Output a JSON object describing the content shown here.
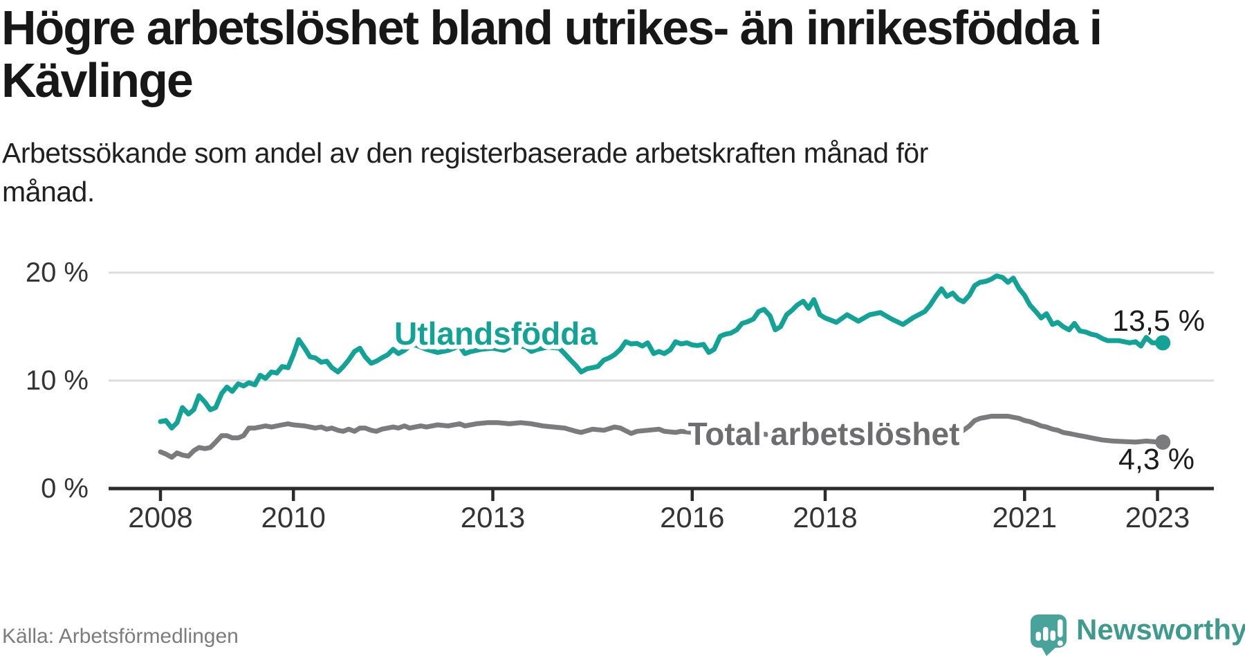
{
  "header": {
    "title_line1": "Högre arbetslöshet bland utrikes- än inrikesfödda i",
    "title_line2": "Kävlinge",
    "subtitle_line1": "Arbetssökande som andel av den registerbaserade arbetskraften månad för",
    "subtitle_line2": "månad."
  },
  "footer": {
    "source": "Källa: Arbetsförmedlingen",
    "brand": "Newsworthy"
  },
  "colors": {
    "teal_line": "#12a296",
    "gray_line": "#7b7b7e",
    "gray_label": "#6d6d70",
    "axis": "#2b2b2b",
    "grid": "#dcdcdc",
    "brand_icon": "#48a39a",
    "brand_text": "#3f9a8e"
  },
  "chart_data": {
    "type": "line",
    "unit": "%",
    "title": "Högre arbetslöshet bland utrikes- än inrikesfödda i Kävlinge",
    "xlabel": "",
    "ylabel": "Arbetssökande som andel av den registerbaserade arbetskraften",
    "x_range": [
      2008,
      2023.17
    ],
    "ylim": [
      0,
      21
    ],
    "grid": "horizontal",
    "legend_position": "inline-labels",
    "y_ticks": [
      {
        "value": 0,
        "label": "0 %"
      },
      {
        "value": 10,
        "label": "10 %"
      },
      {
        "value": 20,
        "label": "20 %"
      }
    ],
    "y_gridlines": [
      10,
      20
    ],
    "x_ticks": [
      {
        "year": 2008,
        "label": "2008"
      },
      {
        "year": 2010,
        "label": "2010"
      },
      {
        "year": 2013,
        "label": "2013"
      },
      {
        "year": 2016,
        "label": "2016"
      },
      {
        "year": 2018,
        "label": "2018"
      },
      {
        "year": 2021,
        "label": "2021"
      },
      {
        "year": 2023,
        "label": "2023"
      }
    ],
    "series": [
      {
        "name": "Utlandsfödda",
        "color": "#12a296",
        "end_label": "13,5 %",
        "end_value": 13.5,
        "points": [
          [
            2008.0,
            6.2
          ],
          [
            2008.08,
            6.3
          ],
          [
            2008.17,
            5.6
          ],
          [
            2008.25,
            6.1
          ],
          [
            2008.33,
            7.5
          ],
          [
            2008.42,
            6.9
          ],
          [
            2008.5,
            7.3
          ],
          [
            2008.58,
            8.6
          ],
          [
            2008.67,
            8.0
          ],
          [
            2008.75,
            7.3
          ],
          [
            2008.83,
            7.5
          ],
          [
            2008.92,
            8.8
          ],
          [
            2009.0,
            9.4
          ],
          [
            2009.08,
            9.0
          ],
          [
            2009.17,
            9.7
          ],
          [
            2009.25,
            9.5
          ],
          [
            2009.33,
            9.8
          ],
          [
            2009.42,
            9.6
          ],
          [
            2009.5,
            10.5
          ],
          [
            2009.58,
            10.2
          ],
          [
            2009.67,
            10.8
          ],
          [
            2009.75,
            10.7
          ],
          [
            2009.83,
            11.3
          ],
          [
            2009.92,
            11.2
          ],
          [
            2010.0,
            12.4
          ],
          [
            2010.08,
            13.8
          ],
          [
            2010.17,
            13.0
          ],
          [
            2010.25,
            12.2
          ],
          [
            2010.33,
            12.1
          ],
          [
            2010.42,
            11.7
          ],
          [
            2010.5,
            11.8
          ],
          [
            2010.58,
            11.2
          ],
          [
            2010.67,
            10.8
          ],
          [
            2010.75,
            11.3
          ],
          [
            2010.83,
            11.9
          ],
          [
            2010.92,
            12.7
          ],
          [
            2011.0,
            13.0
          ],
          [
            2011.08,
            12.2
          ],
          [
            2011.17,
            11.6
          ],
          [
            2011.25,
            11.8
          ],
          [
            2011.33,
            12.1
          ],
          [
            2011.42,
            12.4
          ],
          [
            2011.5,
            12.9
          ],
          [
            2011.58,
            12.5
          ],
          [
            2011.67,
            12.8
          ],
          [
            2011.75,
            13.2
          ],
          [
            2011.83,
            13.3
          ],
          [
            2011.92,
            13.1
          ],
          [
            2012.0,
            12.9
          ],
          [
            2012.17,
            12.6
          ],
          [
            2012.33,
            12.8
          ],
          [
            2012.5,
            13.2
          ],
          [
            2012.58,
            12.5
          ],
          [
            2012.67,
            12.7
          ],
          [
            2012.83,
            12.9
          ],
          [
            2013.0,
            13.0
          ],
          [
            2013.17,
            12.8
          ],
          [
            2013.33,
            13.3
          ],
          [
            2013.5,
            13.1
          ],
          [
            2013.58,
            12.7
          ],
          [
            2013.67,
            12.9
          ],
          [
            2013.83,
            13.1
          ],
          [
            2014.0,
            13.0
          ],
          [
            2014.08,
            12.5
          ],
          [
            2014.17,
            11.9
          ],
          [
            2014.25,
            11.4
          ],
          [
            2014.33,
            10.8
          ],
          [
            2014.42,
            11.1
          ],
          [
            2014.5,
            11.2
          ],
          [
            2014.58,
            11.3
          ],
          [
            2014.67,
            11.9
          ],
          [
            2014.75,
            12.1
          ],
          [
            2014.83,
            12.4
          ],
          [
            2014.92,
            12.9
          ],
          [
            2015.0,
            13.6
          ],
          [
            2015.08,
            13.4
          ],
          [
            2015.17,
            13.45
          ],
          [
            2015.25,
            13.2
          ],
          [
            2015.33,
            13.5
          ],
          [
            2015.42,
            12.5
          ],
          [
            2015.5,
            12.7
          ],
          [
            2015.58,
            12.5
          ],
          [
            2015.67,
            12.85
          ],
          [
            2015.75,
            13.6
          ],
          [
            2015.83,
            13.4
          ],
          [
            2015.92,
            13.5
          ],
          [
            2016.0,
            13.3
          ],
          [
            2016.08,
            13.25
          ],
          [
            2016.17,
            13.35
          ],
          [
            2016.25,
            12.6
          ],
          [
            2016.33,
            12.9
          ],
          [
            2016.42,
            14.1
          ],
          [
            2016.5,
            14.3
          ],
          [
            2016.58,
            14.4
          ],
          [
            2016.67,
            14.7
          ],
          [
            2016.75,
            15.3
          ],
          [
            2016.83,
            15.45
          ],
          [
            2016.92,
            15.7
          ],
          [
            2017.0,
            16.4
          ],
          [
            2017.08,
            16.6
          ],
          [
            2017.17,
            16.0
          ],
          [
            2017.25,
            14.7
          ],
          [
            2017.33,
            15.0
          ],
          [
            2017.42,
            16.1
          ],
          [
            2017.5,
            16.5
          ],
          [
            2017.58,
            17.0
          ],
          [
            2017.67,
            17.35
          ],
          [
            2017.75,
            16.7
          ],
          [
            2017.83,
            17.5
          ],
          [
            2017.92,
            16.1
          ],
          [
            2018.0,
            15.8
          ],
          [
            2018.17,
            15.4
          ],
          [
            2018.33,
            16.1
          ],
          [
            2018.5,
            15.5
          ],
          [
            2018.67,
            16.1
          ],
          [
            2018.83,
            16.3
          ],
          [
            2019.0,
            15.7
          ],
          [
            2019.17,
            15.2
          ],
          [
            2019.33,
            15.85
          ],
          [
            2019.5,
            16.4
          ],
          [
            2019.58,
            17.0
          ],
          [
            2019.67,
            17.85
          ],
          [
            2019.75,
            18.5
          ],
          [
            2019.83,
            17.8
          ],
          [
            2019.92,
            18.1
          ],
          [
            2020.0,
            17.55
          ],
          [
            2020.08,
            17.3
          ],
          [
            2020.17,
            17.9
          ],
          [
            2020.25,
            18.8
          ],
          [
            2020.33,
            19.1
          ],
          [
            2020.42,
            19.2
          ],
          [
            2020.5,
            19.4
          ],
          [
            2020.58,
            19.7
          ],
          [
            2020.67,
            19.55
          ],
          [
            2020.75,
            19.1
          ],
          [
            2020.83,
            19.5
          ],
          [
            2020.92,
            18.5
          ],
          [
            2021.0,
            17.9
          ],
          [
            2021.08,
            17.0
          ],
          [
            2021.17,
            16.4
          ],
          [
            2021.25,
            15.8
          ],
          [
            2021.33,
            16.2
          ],
          [
            2021.42,
            15.2
          ],
          [
            2021.5,
            15.4
          ],
          [
            2021.58,
            15.0
          ],
          [
            2021.67,
            14.7
          ],
          [
            2021.75,
            15.3
          ],
          [
            2021.83,
            14.6
          ],
          [
            2021.92,
            14.5
          ],
          [
            2022.0,
            14.3
          ],
          [
            2022.08,
            14.2
          ],
          [
            2022.17,
            13.9
          ],
          [
            2022.25,
            13.7
          ],
          [
            2022.33,
            13.7
          ],
          [
            2022.42,
            13.7
          ],
          [
            2022.5,
            13.6
          ],
          [
            2022.58,
            13.5
          ],
          [
            2022.67,
            13.6
          ],
          [
            2022.75,
            13.2
          ],
          [
            2022.83,
            14.0
          ],
          [
            2022.92,
            13.5
          ],
          [
            2023.0,
            13.5
          ],
          [
            2023.08,
            13.5
          ]
        ]
      },
      {
        "name": "Total arbetslöshet",
        "color": "#7b7b7e",
        "end_label": "4,3 %",
        "end_value": 4.3,
        "points": [
          [
            2008.0,
            3.4
          ],
          [
            2008.08,
            3.2
          ],
          [
            2008.17,
            2.9
          ],
          [
            2008.25,
            3.3
          ],
          [
            2008.33,
            3.1
          ],
          [
            2008.42,
            3.0
          ],
          [
            2008.5,
            3.5
          ],
          [
            2008.58,
            3.8
          ],
          [
            2008.67,
            3.7
          ],
          [
            2008.75,
            3.8
          ],
          [
            2008.83,
            4.3
          ],
          [
            2008.92,
            4.9
          ],
          [
            2009.0,
            4.9
          ],
          [
            2009.08,
            4.7
          ],
          [
            2009.17,
            4.7
          ],
          [
            2009.25,
            4.9
          ],
          [
            2009.33,
            5.6
          ],
          [
            2009.42,
            5.6
          ],
          [
            2009.5,
            5.7
          ],
          [
            2009.58,
            5.8
          ],
          [
            2009.67,
            5.7
          ],
          [
            2009.75,
            5.8
          ],
          [
            2009.83,
            5.9
          ],
          [
            2009.92,
            6.0
          ],
          [
            2010.0,
            5.9
          ],
          [
            2010.17,
            5.8
          ],
          [
            2010.25,
            5.7
          ],
          [
            2010.33,
            5.6
          ],
          [
            2010.42,
            5.7
          ],
          [
            2010.5,
            5.5
          ],
          [
            2010.58,
            5.6
          ],
          [
            2010.67,
            5.4
          ],
          [
            2010.75,
            5.3
          ],
          [
            2010.83,
            5.5
          ],
          [
            2010.92,
            5.3
          ],
          [
            2011.0,
            5.6
          ],
          [
            2011.08,
            5.6
          ],
          [
            2011.17,
            5.4
          ],
          [
            2011.25,
            5.3
          ],
          [
            2011.33,
            5.5
          ],
          [
            2011.42,
            5.6
          ],
          [
            2011.5,
            5.7
          ],
          [
            2011.58,
            5.6
          ],
          [
            2011.67,
            5.8
          ],
          [
            2011.75,
            5.6
          ],
          [
            2011.83,
            5.7
          ],
          [
            2011.92,
            5.8
          ],
          [
            2012.0,
            5.7
          ],
          [
            2012.17,
            5.9
          ],
          [
            2012.33,
            5.8
          ],
          [
            2012.5,
            6.0
          ],
          [
            2012.58,
            5.8
          ],
          [
            2012.75,
            6.0
          ],
          [
            2012.92,
            6.1
          ],
          [
            2013.08,
            6.1
          ],
          [
            2013.25,
            6.0
          ],
          [
            2013.42,
            6.1
          ],
          [
            2013.58,
            6.0
          ],
          [
            2013.75,
            5.8
          ],
          [
            2013.92,
            5.7
          ],
          [
            2014.08,
            5.6
          ],
          [
            2014.25,
            5.3
          ],
          [
            2014.33,
            5.2
          ],
          [
            2014.5,
            5.5
          ],
          [
            2014.67,
            5.4
          ],
          [
            2014.83,
            5.7
          ],
          [
            2014.92,
            5.6
          ],
          [
            2015.08,
            5.1
          ],
          [
            2015.17,
            5.3
          ],
          [
            2015.33,
            5.4
          ],
          [
            2015.5,
            5.5
          ],
          [
            2015.58,
            5.3
          ],
          [
            2015.75,
            5.2
          ],
          [
            2015.83,
            5.3
          ],
          [
            2016.0,
            5.2
          ],
          [
            2016.25,
            5.1
          ],
          [
            2016.5,
            5.2
          ],
          [
            2016.75,
            5.0
          ],
          [
            2017.0,
            5.1
          ],
          [
            2017.25,
            4.9
          ],
          [
            2017.5,
            5.0
          ],
          [
            2017.75,
            4.9
          ],
          [
            2018.0,
            5.0
          ],
          [
            2018.25,
            4.8
          ],
          [
            2018.5,
            4.9
          ],
          [
            2018.75,
            4.8
          ],
          [
            2019.0,
            4.9
          ],
          [
            2019.25,
            4.8
          ],
          [
            2019.5,
            4.9
          ],
          [
            2019.75,
            5.0
          ],
          [
            2019.92,
            5.1
          ],
          [
            2020.0,
            5.2
          ],
          [
            2020.08,
            5.4
          ],
          [
            2020.17,
            5.8
          ],
          [
            2020.25,
            6.3
          ],
          [
            2020.33,
            6.5
          ],
          [
            2020.42,
            6.6
          ],
          [
            2020.5,
            6.7
          ],
          [
            2020.58,
            6.7
          ],
          [
            2020.67,
            6.7
          ],
          [
            2020.75,
            6.7
          ],
          [
            2020.83,
            6.6
          ],
          [
            2020.92,
            6.5
          ],
          [
            2021.0,
            6.3
          ],
          [
            2021.08,
            6.2
          ],
          [
            2021.17,
            6.0
          ],
          [
            2021.25,
            5.8
          ],
          [
            2021.33,
            5.7
          ],
          [
            2021.42,
            5.5
          ],
          [
            2021.5,
            5.4
          ],
          [
            2021.58,
            5.2
          ],
          [
            2021.67,
            5.1
          ],
          [
            2021.75,
            5.0
          ],
          [
            2021.83,
            4.9
          ],
          [
            2021.92,
            4.8
          ],
          [
            2022.0,
            4.7
          ],
          [
            2022.17,
            4.5
          ],
          [
            2022.33,
            4.4
          ],
          [
            2022.5,
            4.35
          ],
          [
            2022.67,
            4.3
          ],
          [
            2022.83,
            4.4
          ],
          [
            2022.92,
            4.35
          ],
          [
            2023.0,
            4.3
          ],
          [
            2023.08,
            4.3
          ]
        ]
      }
    ]
  }
}
